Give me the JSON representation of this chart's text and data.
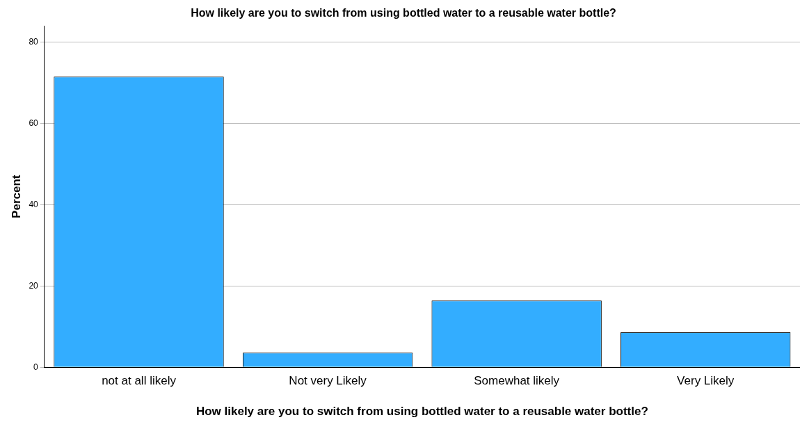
{
  "chart_data": {
    "type": "bar",
    "title": "How likely are you to switch from using bottled water to a reusable water bottle?",
    "xlabel": "How likely are you to switch from using bottled water to a reusable water bottle?",
    "ylabel": "Percent",
    "categories": [
      "not at all likely",
      "Not very Likely",
      "Somewhat likely",
      "Very Likely"
    ],
    "values": [
      71.5,
      3.6,
      16.4,
      8.6
    ],
    "color": "#33adff",
    "ylim": [
      0,
      84
    ],
    "yticks": [
      0,
      20,
      40,
      60,
      80
    ],
    "grid": "y",
    "legend": false
  }
}
